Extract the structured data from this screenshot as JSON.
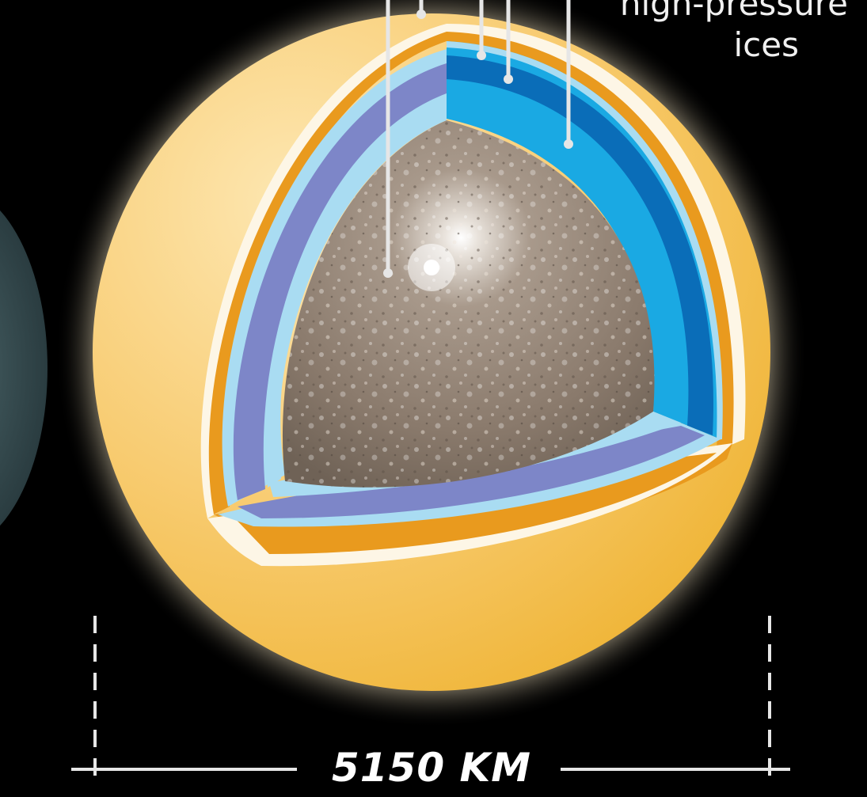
{
  "labels": {
    "layer_label_line1": "high-pressure",
    "layer_label_line2": "ices"
  },
  "scale": {
    "value_text": "5150 KM"
  },
  "colors": {
    "background": "#000000",
    "outer_crust": "#f6c15a",
    "orange_band": "#e99a1e",
    "pale_band": "#fdf6e6",
    "light_blue": "#a9dcf2",
    "periwinkle": "#7d86c8",
    "sky_blue": "#1aa9e3",
    "deep_blue": "#0a6db8",
    "rock_core": "#8e8073",
    "neighbor_planet": "#3a5358"
  },
  "icons": {
    "leader_lines": "leader-line-icon",
    "scale_bar": "scale-bar-icon"
  }
}
